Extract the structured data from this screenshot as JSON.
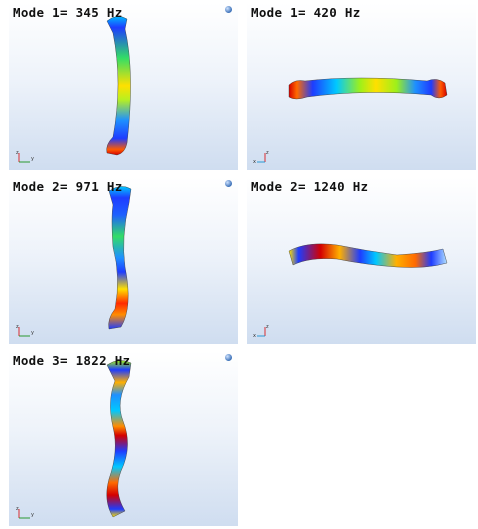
{
  "panels": [
    {
      "title": "Mode 1= 345 Hz",
      "axes": {
        "h": "y",
        "v": "z"
      }
    },
    {
      "title": "Mode 1= 420 Hz",
      "axes": {
        "h": "x",
        "v": "z"
      }
    },
    {
      "title": "Mode 2= 971 Hz",
      "axes": {
        "h": "y",
        "v": "z"
      }
    },
    {
      "title": "Mode 2= 1240 Hz",
      "axes": {
        "h": "x",
        "v": "z"
      }
    },
    {
      "title": "Mode 3= 1822 Hz",
      "axes": {
        "h": "y",
        "v": "z"
      }
    }
  ],
  "colors": {
    "low": "#1e3cff",
    "mid_low": "#00c8ff",
    "mid": "#9ef01a",
    "mid_high": "#ffe000",
    "high": "#ff6a00",
    "max": "#d40000",
    "background_top": "#ffffff",
    "background_bottom": "#cfddf0"
  }
}
